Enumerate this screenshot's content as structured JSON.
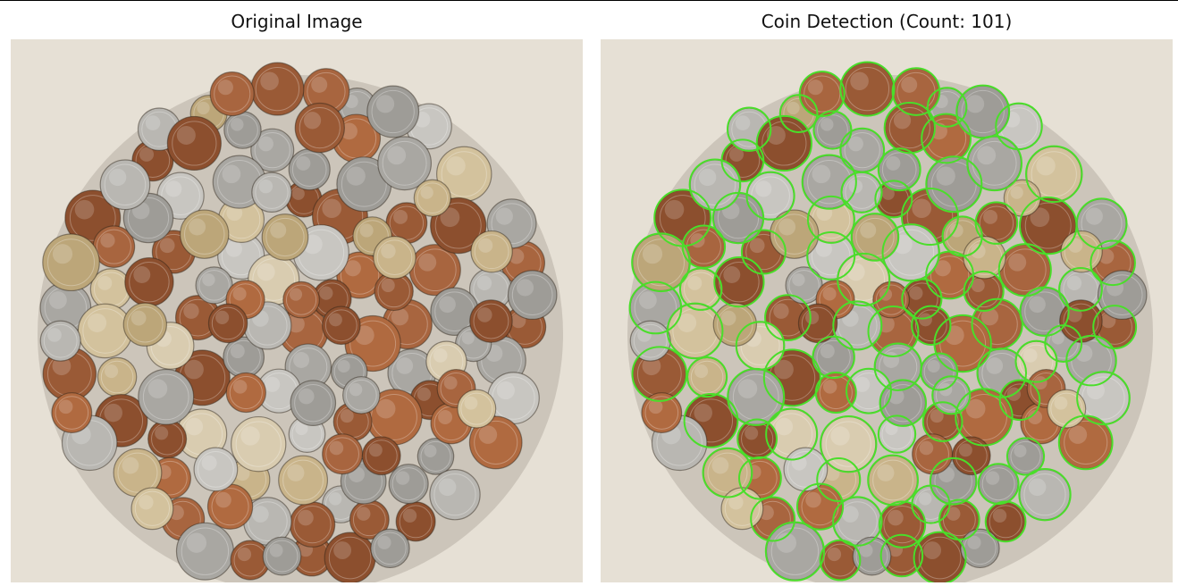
{
  "panels": {
    "left": {
      "title": "Original Image",
      "image": "coin-pile-photo"
    },
    "right": {
      "title": "Coin Detection (Count: 101)",
      "image": "coin-pile-photo-with-detections"
    }
  },
  "colors": {
    "background_surface": "#e6e0d5",
    "detection_circle": "#4ade2a",
    "copper": "#a0603a",
    "silver": "#b7b5b0",
    "brass": "#c8b48a"
  }
}
